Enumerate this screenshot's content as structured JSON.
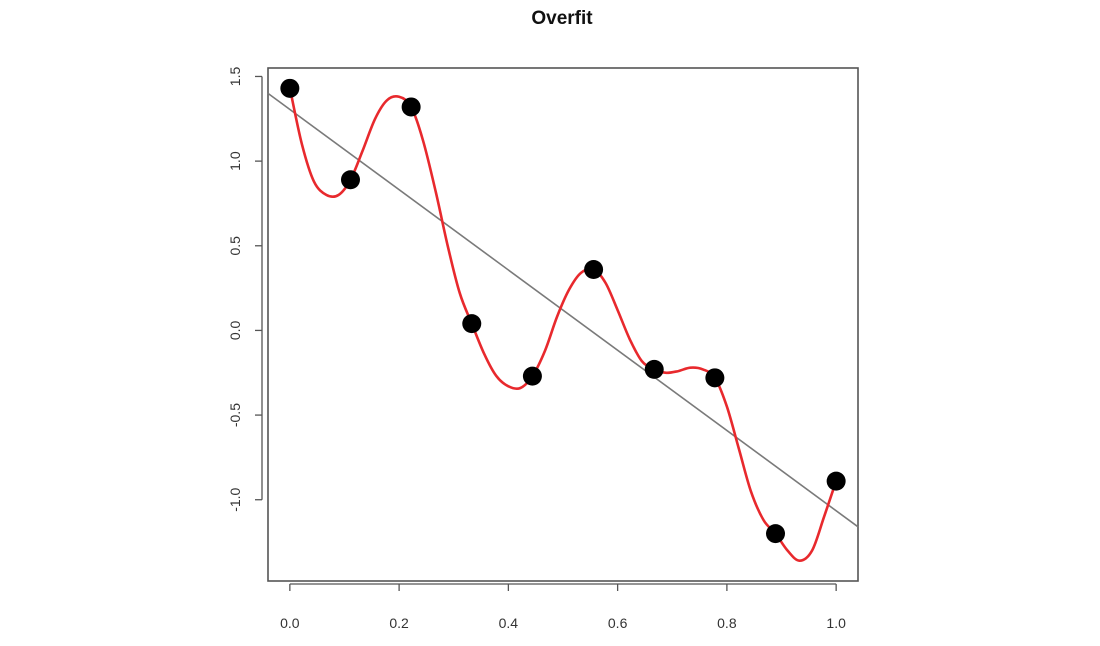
{
  "chart_data": {
    "type": "scatter",
    "title": "Overfit",
    "xlabel": "",
    "ylabel": "",
    "xlim": [
      -0.04,
      1.04
    ],
    "ylim": [
      -1.48,
      1.55
    ],
    "x_ticks": [
      "0.0",
      "0.2",
      "0.4",
      "0.6",
      "0.8",
      "1.0"
    ],
    "y_ticks": [
      "-1.0",
      "-0.5",
      "0.0",
      "0.5",
      "1.0",
      "1.5"
    ],
    "grid": false,
    "legend": "none",
    "series": [
      {
        "kind": "points",
        "color": "#000000",
        "x": [
          0.0,
          0.111,
          0.222,
          0.333,
          0.444,
          0.556,
          0.667,
          0.778,
          0.889,
          1.0
        ],
        "y": [
          1.43,
          0.89,
          1.32,
          0.04,
          -0.27,
          0.36,
          -0.23,
          -0.28,
          -1.2,
          -0.89
        ]
      },
      {
        "kind": "linear-fit-line",
        "color": "#7a7a7a",
        "x": [
          -0.04,
          1.04
        ],
        "y": [
          1.4,
          -1.16
        ]
      },
      {
        "kind": "interpolating-curve",
        "color": "#e8292d",
        "x": [
          0.0,
          0.022,
          0.044,
          0.067,
          0.089,
          0.111,
          0.133,
          0.156,
          0.178,
          0.2,
          0.222,
          0.244,
          0.267,
          0.289,
          0.311,
          0.333,
          0.356,
          0.378,
          0.4,
          0.422,
          0.444,
          0.467,
          0.489,
          0.511,
          0.533,
          0.556,
          0.578,
          0.6,
          0.622,
          0.644,
          0.667,
          0.689,
          0.711,
          0.733,
          0.756,
          0.778,
          0.8,
          0.822,
          0.844,
          0.867,
          0.889,
          0.911,
          0.933,
          0.956,
          0.978,
          1.0
        ],
        "y": [
          1.43,
          1.1,
          0.88,
          0.8,
          0.8,
          0.89,
          1.06,
          1.25,
          1.36,
          1.38,
          1.32,
          1.12,
          0.82,
          0.5,
          0.22,
          0.04,
          -0.14,
          -0.27,
          -0.33,
          -0.34,
          -0.27,
          -0.12,
          0.08,
          0.24,
          0.34,
          0.36,
          0.28,
          0.12,
          -0.05,
          -0.18,
          -0.23,
          -0.25,
          -0.24,
          -0.22,
          -0.23,
          -0.28,
          -0.45,
          -0.7,
          -0.95,
          -1.12,
          -1.2,
          -1.3,
          -1.36,
          -1.3,
          -1.1,
          -0.89
        ]
      }
    ]
  }
}
